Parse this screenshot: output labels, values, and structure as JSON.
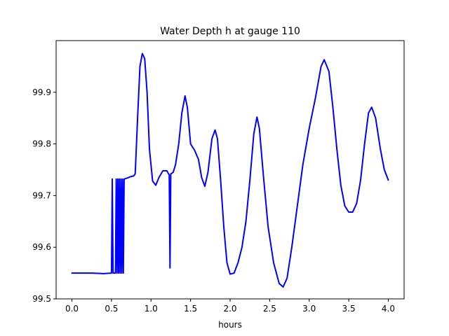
{
  "chart_data": {
    "type": "line",
    "title": "Water Depth h at gauge 110",
    "xlabel": "hours",
    "ylabel": "",
    "xlim": [
      -0.2,
      4.2
    ],
    "ylim": [
      99.5,
      100.0
    ],
    "xticks": [
      0.0,
      0.5,
      1.0,
      1.5,
      2.0,
      2.5,
      3.0,
      3.5,
      4.0
    ],
    "xtick_labels": [
      "0.0",
      "0.5",
      "1.0",
      "1.5",
      "2.0",
      "2.5",
      "3.0",
      "3.5",
      "4.0"
    ],
    "yticks": [
      99.5,
      99.6,
      99.7,
      99.8,
      99.9
    ],
    "ytick_labels": [
      "99.5",
      "99.6",
      "99.7",
      "99.8",
      "99.9"
    ],
    "grid": false,
    "line_color": "#0000ff",
    "series": [
      {
        "name": "",
        "points": [
          [
            0.0,
            99.55
          ],
          [
            0.25,
            99.55
          ],
          [
            0.4,
            99.549
          ],
          [
            0.5,
            99.55
          ],
          [
            0.51,
            99.732
          ],
          [
            0.52,
            99.55
          ],
          [
            0.55,
            99.55
          ],
          [
            0.56,
            99.732
          ],
          [
            0.57,
            99.55
          ],
          [
            0.58,
            99.732
          ],
          [
            0.59,
            99.55
          ],
          [
            0.6,
            99.732
          ],
          [
            0.61,
            99.55
          ],
          [
            0.62,
            99.732
          ],
          [
            0.63,
            99.55
          ],
          [
            0.64,
            99.732
          ],
          [
            0.65,
            99.55
          ],
          [
            0.66,
            99.732
          ],
          [
            0.7,
            99.734
          ],
          [
            0.75,
            99.737
          ],
          [
            0.78,
            99.738
          ],
          [
            0.8,
            99.742
          ],
          [
            0.83,
            99.85
          ],
          [
            0.86,
            99.95
          ],
          [
            0.89,
            99.975
          ],
          [
            0.92,
            99.965
          ],
          [
            0.95,
            99.9
          ],
          [
            0.98,
            99.79
          ],
          [
            1.02,
            99.728
          ],
          [
            1.06,
            99.72
          ],
          [
            1.1,
            99.735
          ],
          [
            1.15,
            99.748
          ],
          [
            1.2,
            99.748
          ],
          [
            1.23,
            99.74
          ],
          [
            1.24,
            99.56
          ],
          [
            1.25,
            99.742
          ],
          [
            1.28,
            99.745
          ],
          [
            1.31,
            99.76
          ],
          [
            1.35,
            99.8
          ],
          [
            1.39,
            99.86
          ],
          [
            1.43,
            99.893
          ],
          [
            1.46,
            99.87
          ],
          [
            1.5,
            99.8
          ],
          [
            1.55,
            99.788
          ],
          [
            1.6,
            99.77
          ],
          [
            1.64,
            99.735
          ],
          [
            1.68,
            99.718
          ],
          [
            1.72,
            99.745
          ],
          [
            1.77,
            99.81
          ],
          [
            1.81,
            99.827
          ],
          [
            1.84,
            99.81
          ],
          [
            1.88,
            99.73
          ],
          [
            1.92,
            99.64
          ],
          [
            1.96,
            99.57
          ],
          [
            2.0,
            99.548
          ],
          [
            2.05,
            99.55
          ],
          [
            2.1,
            99.57
          ],
          [
            2.15,
            99.6
          ],
          [
            2.2,
            99.65
          ],
          [
            2.25,
            99.73
          ],
          [
            2.3,
            99.82
          ],
          [
            2.34,
            99.852
          ],
          [
            2.37,
            99.83
          ],
          [
            2.42,
            99.74
          ],
          [
            2.48,
            99.64
          ],
          [
            2.55,
            99.57
          ],
          [
            2.62,
            99.53
          ],
          [
            2.67,
            99.523
          ],
          [
            2.72,
            99.54
          ],
          [
            2.78,
            99.6
          ],
          [
            2.85,
            99.68
          ],
          [
            2.92,
            99.76
          ],
          [
            3.0,
            99.83
          ],
          [
            3.08,
            99.89
          ],
          [
            3.15,
            99.95
          ],
          [
            3.19,
            99.963
          ],
          [
            3.25,
            99.94
          ],
          [
            3.3,
            99.87
          ],
          [
            3.35,
            99.79
          ],
          [
            3.4,
            99.72
          ],
          [
            3.45,
            99.68
          ],
          [
            3.5,
            99.668
          ],
          [
            3.55,
            99.668
          ],
          [
            3.6,
            99.685
          ],
          [
            3.65,
            99.73
          ],
          [
            3.7,
            99.8
          ],
          [
            3.75,
            99.86
          ],
          [
            3.79,
            99.871
          ],
          [
            3.84,
            99.85
          ],
          [
            3.9,
            99.79
          ],
          [
            3.95,
            99.75
          ],
          [
            4.0,
            99.73
          ]
        ]
      }
    ]
  }
}
